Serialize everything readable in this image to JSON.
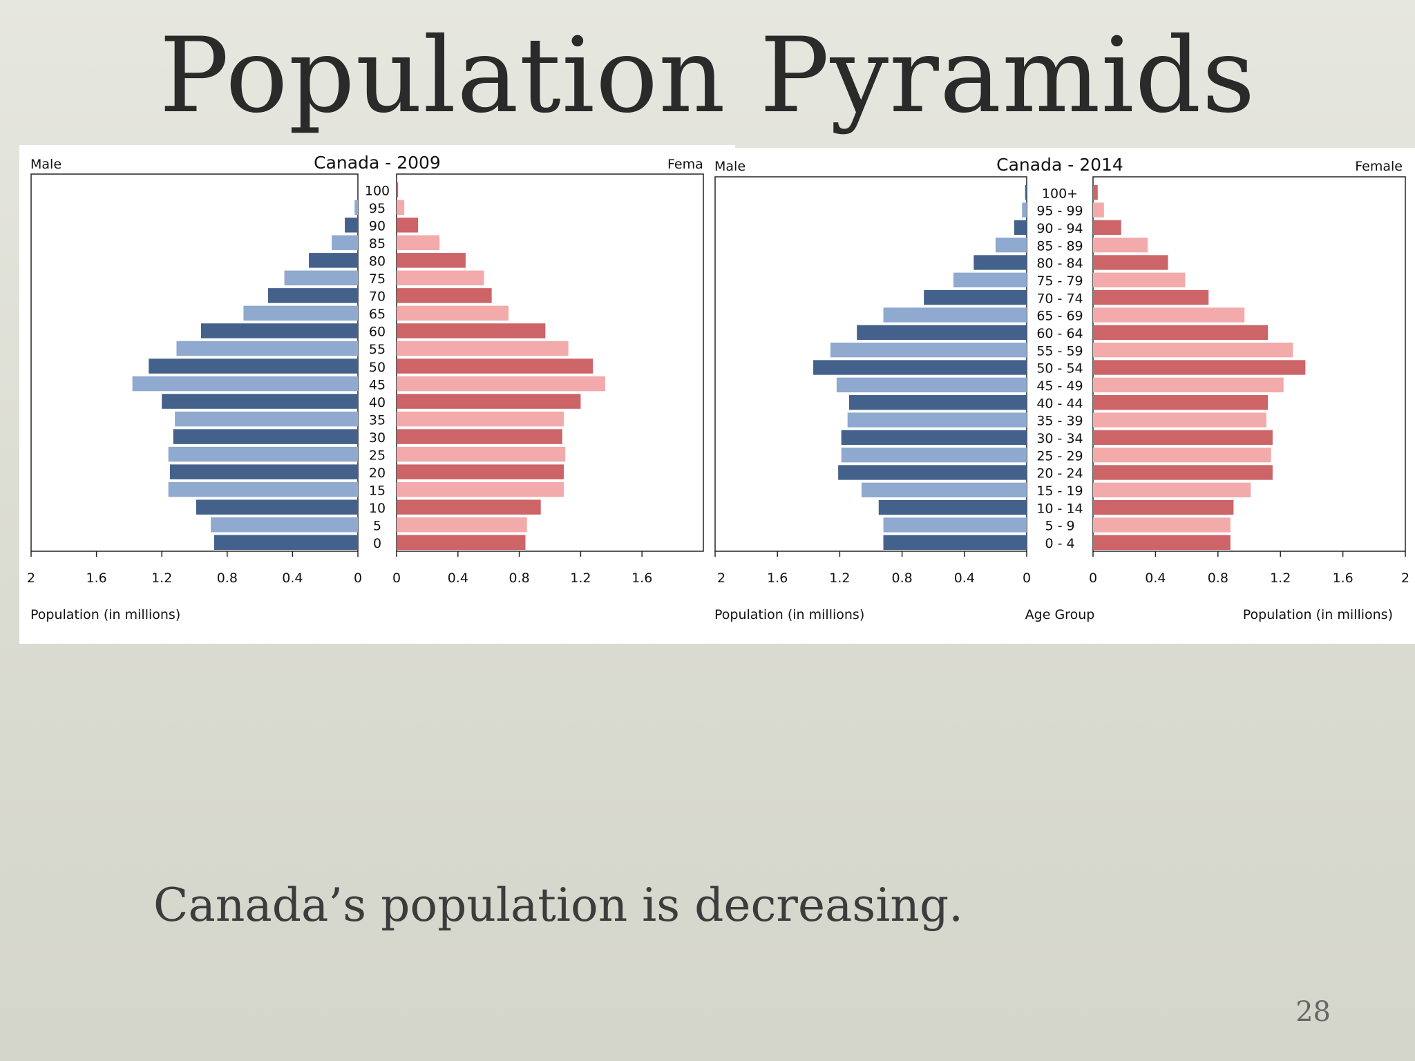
{
  "slide": {
    "title": "Population Pyramids",
    "caption": "Canada’s population is decreasing.",
    "page_number": "28"
  },
  "colors": {
    "male_dark": "#44618b",
    "male_light": "#8fa9cf",
    "female_dark": "#cc6468",
    "female_light": "#f2aaab"
  },
  "chart_data": [
    {
      "type": "bar",
      "title": "Canada - 2009",
      "left_label": "Male",
      "right_label": "Fema",
      "xlabel": "Population (in millions)",
      "xlim": [
        0,
        2
      ],
      "ticks_left": [
        "2",
        "1.6",
        "1.2",
        "0.8",
        "0.4",
        "0"
      ],
      "ticks_right": [
        "0",
        "0.4",
        "0.8",
        "1.2",
        "1.6"
      ],
      "categories": [
        "100",
        "95",
        "90",
        "85",
        "80",
        "75",
        "70",
        "65",
        "60",
        "55",
        "50",
        "45",
        "40",
        "35",
        "30",
        "25",
        "20",
        "15",
        "10",
        "5",
        "0"
      ],
      "series": [
        {
          "name": "Male",
          "values": [
            0.0,
            0.02,
            0.08,
            0.16,
            0.3,
            0.45,
            0.55,
            0.7,
            0.96,
            1.11,
            1.28,
            1.38,
            1.2,
            1.12,
            1.13,
            1.16,
            1.15,
            1.16,
            0.99,
            0.9,
            0.88
          ]
        },
        {
          "name": "Female",
          "values": [
            0.01,
            0.05,
            0.14,
            0.28,
            0.45,
            0.57,
            0.62,
            0.73,
            0.97,
            1.12,
            1.28,
            1.36,
            1.2,
            1.09,
            1.08,
            1.1,
            1.09,
            1.09,
            0.94,
            0.85,
            0.84
          ]
        }
      ]
    },
    {
      "type": "bar",
      "title": "Canada - 2014",
      "left_label": "Male",
      "right_label": "Female",
      "xlabel": "Population (in millions)",
      "center_label": "Age Group",
      "xlim": [
        0,
        2
      ],
      "ticks_left": [
        "2",
        "1.6",
        "1.2",
        "0.8",
        "0.4",
        "0"
      ],
      "ticks_right": [
        "0",
        "0.4",
        "0.8",
        "1.2",
        "1.6",
        "2"
      ],
      "categories": [
        "100+",
        "95 - 99",
        "90 - 94",
        "85 - 89",
        "80 - 84",
        "75 - 79",
        "70 - 74",
        "65 - 69",
        "60 - 64",
        "55 - 59",
        "50 - 54",
        "45 - 49",
        "40 - 44",
        "35 - 39",
        "30 - 34",
        "25 - 29",
        "20 - 24",
        "15 - 19",
        "10 - 14",
        "5 - 9",
        "0 - 4"
      ],
      "series": [
        {
          "name": "Male",
          "values": [
            0.01,
            0.03,
            0.08,
            0.2,
            0.34,
            0.47,
            0.66,
            0.92,
            1.09,
            1.26,
            1.37,
            1.22,
            1.14,
            1.15,
            1.19,
            1.19,
            1.21,
            1.06,
            0.95,
            0.92,
            0.92
          ]
        },
        {
          "name": "Female",
          "values": [
            0.03,
            0.07,
            0.18,
            0.35,
            0.48,
            0.59,
            0.74,
            0.97,
            1.12,
            1.28,
            1.36,
            1.22,
            1.12,
            1.11,
            1.15,
            1.14,
            1.15,
            1.01,
            0.9,
            0.88,
            0.88
          ]
        }
      ]
    }
  ]
}
